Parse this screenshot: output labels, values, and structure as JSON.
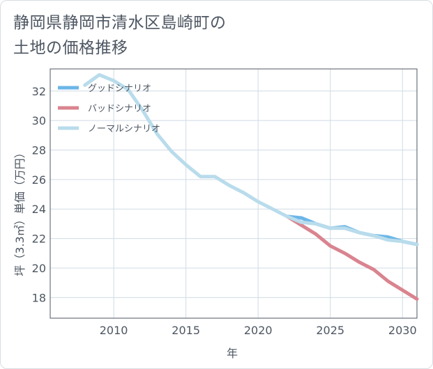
{
  "chart_data": {
    "type": "line",
    "title": [
      "静岡県静岡市清水区島崎町の",
      "土地の価格推移"
    ],
    "xlabel": "年",
    "ylabel": "坪（3.3㎡）単価（万円）",
    "xlim": [
      2005.6,
      2031
    ],
    "ylim": [
      16.6,
      33.5
    ],
    "xticks": [
      2010,
      2015,
      2020,
      2025,
      2030
    ],
    "yticks": [
      18,
      20,
      22,
      24,
      26,
      28,
      30,
      32
    ],
    "legend_position": "top-left",
    "series": [
      {
        "name": "グッドシナリオ",
        "color": "#6cb6e8",
        "x": [
          2022,
          2023,
          2024,
          2025,
          2026,
          2027,
          2028,
          2029,
          2030,
          2031
        ],
        "y": [
          23.5,
          23.4,
          23.0,
          22.7,
          22.8,
          22.4,
          22.2,
          22.1,
          21.8,
          21.6
        ]
      },
      {
        "name": "バッドシナリオ",
        "color": "#d9848f",
        "x": [
          2022,
          2023,
          2024,
          2025,
          2026,
          2027,
          2028,
          2029,
          2030,
          2031
        ],
        "y": [
          23.5,
          22.9,
          22.3,
          21.5,
          21.0,
          20.4,
          19.9,
          19.1,
          18.5,
          17.9
        ]
      },
      {
        "name": "ノーマルシナリオ",
        "color": "#b9dcec",
        "x": [
          2008,
          2009,
          2010,
          2011,
          2012,
          2013,
          2014,
          2015,
          2016,
          2017,
          2018,
          2019,
          2020,
          2021,
          2022,
          2023,
          2024,
          2025,
          2026,
          2027,
          2028,
          2029,
          2030,
          2031
        ],
        "y": [
          32.4,
          33.1,
          32.7,
          32.1,
          30.7,
          29.1,
          27.9,
          27.0,
          26.2,
          26.2,
          25.6,
          25.1,
          24.5,
          24.0,
          23.5,
          23.1,
          23.0,
          22.7,
          22.7,
          22.4,
          22.2,
          21.9,
          21.8,
          21.6
        ]
      }
    ]
  }
}
